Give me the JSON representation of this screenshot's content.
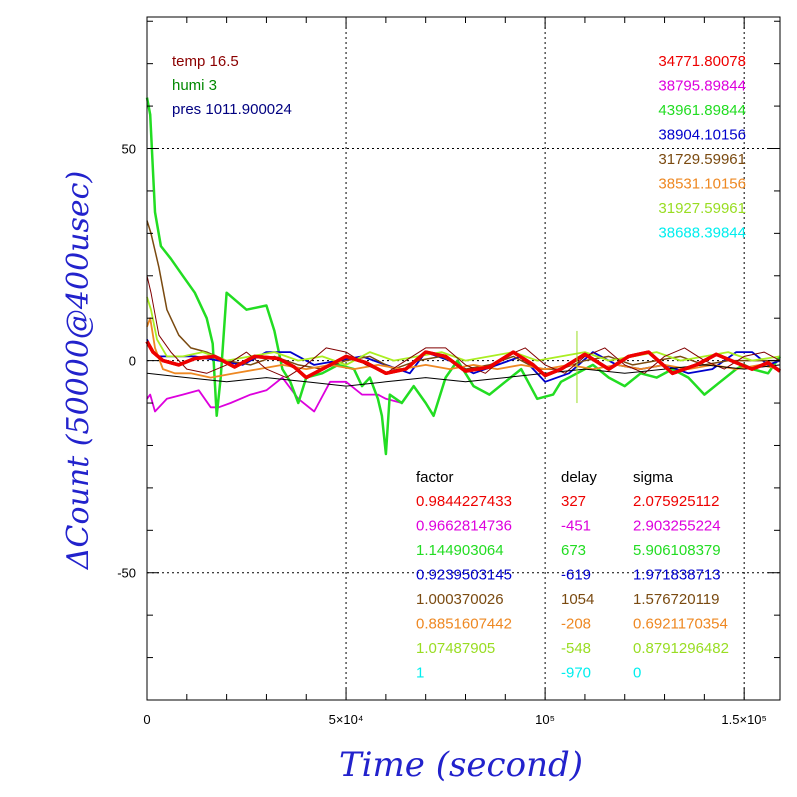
{
  "chart_data": {
    "type": "line",
    "xlabel": "Time (second)",
    "ylabel": "ΔCount (50000@400usec)",
    "xlim": [
      0,
      159000
    ],
    "ylim": [
      -80,
      81
    ],
    "x_ticks": [
      {
        "value": 0,
        "label": "0"
      },
      {
        "value": 50000,
        "label": "5×10⁴"
      },
      {
        "value": 100000,
        "label": "10⁵"
      },
      {
        "value": 150000,
        "label": "1.5×10⁵"
      }
    ],
    "y_ticks": [
      {
        "value": 50,
        "label": "50"
      },
      {
        "value": 0,
        "label": "0"
      },
      {
        "value": -50,
        "label": "-50"
      }
    ],
    "grid": true,
    "conditions": [
      {
        "text": "temp 16.5",
        "color": "#8b0000"
      },
      {
        "text": "humi 3",
        "color": "#008800"
      },
      {
        "text": "pres 1011.900024",
        "color": "#000080"
      }
    ],
    "table_headers": {
      "factor": "factor",
      "delay": "delay",
      "sigma": "sigma"
    },
    "series": [
      {
        "color": "#ee0000",
        "width": 3.5,
        "legend_value": "34771.80078",
        "factor": "0.9844227433",
        "delay": "327",
        "sigma": "2.075925112",
        "x": [
          0,
          1500,
          4000,
          8000,
          12000,
          17000,
          22000,
          27000,
          33000,
          37000,
          40000,
          45000,
          50000,
          55000,
          60000,
          65000,
          70000,
          75000,
          80000,
          86000,
          92000,
          97000,
          100000,
          104000,
          110000,
          116000,
          121000,
          126000,
          132000,
          138000,
          143000,
          148000,
          152000,
          156000,
          159000
        ],
        "y": [
          4.5,
          2,
          0,
          -1,
          0.5,
          1,
          -1.5,
          1,
          0.5,
          -1.5,
          -4,
          -1.5,
          1,
          -0.5,
          -3,
          -2,
          2,
          1,
          -2.5,
          -1.5,
          2,
          -1,
          -3.5,
          -2,
          1.5,
          -2,
          1,
          2,
          -3,
          -1,
          1.5,
          -0.5,
          -2,
          -0.5,
          -2.5
        ]
      },
      {
        "color": "#dd00dd",
        "width": 1.8,
        "legend_value": "38795.89844",
        "factor": "0.9662814736",
        "delay": "-451",
        "sigma": "2.903255224",
        "x": [
          0,
          800,
          2000,
          5000,
          9000,
          13000,
          16000,
          18000,
          21000,
          26000,
          30000,
          34000,
          38000,
          42000,
          46000,
          50000,
          54000,
          58000,
          60000,
          64000
        ],
        "y": [
          -9,
          -8,
          -12,
          -9,
          -8,
          -7,
          -11,
          -11,
          -10,
          -8,
          -7,
          -4,
          -9,
          -12,
          -5,
          -5,
          -8,
          -8,
          -9,
          -10
        ]
      },
      {
        "color": "#66ee66",
        "width": 0,
        "legend_value": "31927.59961",
        "factor": "1.07487905",
        "delay": "-548",
        "sigma": "0.8791296482",
        "x": [
          0,
          2000,
          4000,
          6000,
          9000,
          14000,
          20000,
          26000,
          32000,
          38000,
          44000,
          50000,
          56000,
          62000,
          68000,
          74000,
          80000,
          86000,
          92000,
          98000,
          104000,
          110000,
          116000,
          122000,
          128000,
          134000,
          140000,
          146000,
          152000,
          158000
        ],
        "y": [
          11,
          6,
          1,
          0,
          1,
          1,
          0,
          0,
          1,
          1,
          0,
          1,
          0,
          0,
          1,
          1,
          0,
          1,
          0,
          0,
          1,
          1,
          0,
          1,
          0,
          0,
          1,
          1,
          0,
          1
        ]
      },
      {
        "color": "#22dd22",
        "width": 2.5,
        "legend_value": "43961.89844",
        "factor": "1.144903064",
        "delay": "673",
        "sigma": "5.906108379",
        "x": [
          0,
          800,
          2000,
          3500,
          6000,
          9000,
          12000,
          15000,
          16500,
          17500,
          18500,
          20000,
          25000,
          30000,
          32000,
          34000,
          36000,
          38000,
          40000,
          44000,
          48000,
          52000,
          54000,
          56000,
          58000,
          59000,
          60000,
          61000,
          64000,
          67000,
          70000,
          72000,
          75000,
          78000,
          82000,
          86000,
          90000,
          94000,
          98000,
          102000,
          104000,
          108000,
          112000,
          116000,
          120000,
          124000,
          128000,
          132000,
          136000,
          140000,
          144000,
          148000,
          150000,
          152000,
          156000,
          159000
        ],
        "y": [
          62,
          58,
          35,
          27,
          24,
          20,
          16,
          10,
          4,
          -13,
          -4,
          16,
          12,
          13,
          7,
          -2,
          -5,
          -10,
          -4,
          -3,
          -1,
          -2,
          -6,
          -4,
          -9,
          -13,
          -22,
          -8,
          -10,
          -6,
          -10,
          -13,
          -4,
          0,
          -6,
          -8,
          -5,
          -2,
          -9,
          -8,
          -5,
          -3,
          -1,
          -4,
          -6,
          -3,
          -4,
          -2,
          -4,
          -8,
          -5,
          -2,
          -1,
          -2,
          -3,
          1
        ]
      },
      {
        "color": "#0000cc",
        "width": 1.8,
        "legend_value": "38904.10156",
        "factor": "0.9239503145",
        "delay": "-619",
        "sigma": "1.971838713",
        "x": [
          0,
          1500,
          3000,
          7000,
          12000,
          18000,
          24000,
          30000,
          36000,
          42000,
          48000,
          54000,
          60000,
          66000,
          70000,
          76000,
          82000,
          88000,
          94000,
          100000,
          106000,
          112000,
          118000,
          124000,
          130000,
          136000,
          142000,
          148000,
          152000,
          156000,
          159000
        ],
        "y": [
          5,
          2,
          1,
          1,
          1,
          0,
          -1,
          2,
          2,
          -1,
          0,
          1,
          -1,
          -3,
          2,
          0,
          -3,
          -1,
          1,
          -5,
          -3,
          2,
          -1,
          -2,
          -1,
          -3,
          -2,
          2,
          2,
          -1,
          0
        ]
      },
      {
        "color": "#7a4a10",
        "width": 1.5,
        "legend_value": "31729.59961",
        "factor": "1.000370026",
        "delay": "1054",
        "sigma": "1.576720119",
        "x": [
          0,
          1000,
          3000,
          5000,
          8000,
          11000,
          15000,
          20000,
          26000,
          32000,
          38000,
          44000,
          50000,
          56000,
          62000,
          68000,
          74000,
          80000,
          86000,
          92000,
          98000,
          104000,
          110000,
          116000,
          122000,
          128000,
          134000,
          140000,
          146000,
          152000,
          159000
        ],
        "y": [
          33,
          30,
          22,
          12,
          6,
          3,
          2,
          0,
          -1,
          1,
          -1,
          -2,
          0,
          1,
          -2,
          0,
          1,
          -2,
          -1,
          1,
          -2,
          -2,
          0,
          1,
          -1,
          0,
          1,
          -1,
          0,
          0,
          0
        ]
      },
      {
        "color": "#ee8822",
        "width": 1.8,
        "legend_value": "38531.10156",
        "factor": "0.8851607442",
        "delay": "-208",
        "sigma": "0.6921170354",
        "x": [
          0,
          800,
          2000,
          4000,
          7000,
          11000,
          16000,
          22000,
          28000,
          34000,
          40000,
          46000,
          52000,
          58000,
          64000,
          70000,
          76000,
          82000,
          88000,
          94000,
          100000,
          106000,
          112000,
          118000,
          124000,
          130000,
          136000,
          142000,
          148000,
          154000,
          159000
        ],
        "y": [
          8,
          10,
          3,
          -2,
          -3,
          -3,
          -4,
          -3,
          -2,
          -1,
          -2,
          -1,
          -2,
          -1,
          -2,
          -1,
          -2,
          -1,
          -2,
          -1,
          -2,
          -1,
          -2,
          -1,
          -2,
          -1,
          -2,
          -1,
          -2,
          -1,
          -2
        ]
      },
      {
        "color": "#aaee22",
        "width": 1.8,
        "legend_value": "",
        "factor": "",
        "delay": "",
        "sigma": "",
        "x": [
          0,
          1000,
          2500,
          5000,
          9000,
          14000,
          20000,
          26000,
          32000,
          38000,
          44000,
          50000,
          56000,
          62000,
          68000,
          74000,
          80000,
          86000,
          92000,
          98000,
          104000,
          110000,
          116000,
          122000,
          128000,
          134000,
          140000,
          146000,
          152000,
          159000
        ],
        "y": [
          15,
          12,
          5,
          1,
          1,
          2,
          0,
          1,
          2,
          0,
          1,
          -1,
          2,
          0,
          1,
          2,
          0,
          1,
          2,
          0,
          1,
          2,
          0,
          1,
          2,
          0,
          1,
          2,
          0,
          1
        ]
      },
      {
        "color": "#800000",
        "width": 1,
        "legend_value": "",
        "factor": "",
        "delay": "",
        "sigma": "",
        "x": [
          0,
          1000,
          3000,
          6000,
          10000,
          15000,
          20000,
          25000,
          30000,
          35000,
          40000,
          45000,
          50000,
          55000,
          60000,
          65000,
          70000,
          75000,
          80000,
          85000,
          90000,
          95000,
          100000,
          105000,
          110000,
          115000,
          120000,
          125000,
          130000,
          135000,
          140000,
          145000,
          150000,
          155000,
          159000
        ],
        "y": [
          20,
          16,
          6,
          2,
          -2,
          -3,
          -1,
          2,
          -2,
          -4,
          -1,
          3,
          2,
          -1,
          -3,
          0,
          3,
          3,
          -1,
          -3,
          1,
          3,
          -1,
          -3,
          1,
          3,
          -1,
          -3,
          1,
          3,
          0,
          -2,
          1,
          2,
          0
        ]
      },
      {
        "color": "#000000",
        "width": 1,
        "legend_value": "",
        "factor": "",
        "delay": "",
        "sigma": "",
        "x": [
          0,
          10000,
          20000,
          30000,
          40000,
          50000,
          60000,
          70000,
          80000,
          90000,
          100000,
          110000,
          120000,
          130000,
          140000,
          150000,
          159000
        ],
        "y": [
          -3,
          -4,
          -5,
          -4,
          -5,
          -6,
          -5,
          -4,
          -5,
          -4,
          -3,
          -2,
          -3,
          -2,
          -1,
          -2,
          -1
        ]
      },
      {
        "color": "#00eeee",
        "width": 0,
        "legend_value": "38688.39844",
        "factor": "1",
        "delay": "-970",
        "sigma": "0",
        "x": [
          0,
          159000
        ],
        "y": [
          0,
          0
        ]
      }
    ],
    "legend_values_order": [
      {
        "value": "34771.80078",
        "color": "#ee0000"
      },
      {
        "value": "38795.89844",
        "color": "#dd00dd"
      },
      {
        "value": "43961.89844",
        "color": "#22dd22"
      },
      {
        "value": "38904.10156",
        "color": "#0000cc"
      },
      {
        "value": "31729.59961",
        "color": "#7a4a10"
      },
      {
        "value": "38531.10156",
        "color": "#ee8822"
      },
      {
        "value": "31927.59961",
        "color": "#99dd22"
      },
      {
        "value": "38688.39844",
        "color": "#00eeee"
      }
    ],
    "table_rows": [
      {
        "factor": "0.9844227433",
        "delay": "327",
        "sigma": "2.075925112",
        "color": "#ee0000"
      },
      {
        "factor": "0.9662814736",
        "delay": "-451",
        "sigma": "2.903255224",
        "color": "#dd00dd"
      },
      {
        "factor": "1.144903064",
        "delay": "673",
        "sigma": "5.906108379",
        "color": "#22dd22"
      },
      {
        "factor": "0.9239503145",
        "delay": "-619",
        "sigma": "1.971838713",
        "color": "#0000cc"
      },
      {
        "factor": "1.000370026",
        "delay": "1054",
        "sigma": "1.576720119",
        "color": "#7a4a10"
      },
      {
        "factor": "0.8851607442",
        "delay": "-208",
        "sigma": "0.6921170354",
        "color": "#ee8822"
      },
      {
        "factor": "1.07487905",
        "delay": "-548",
        "sigma": "0.8791296482",
        "color": "#99dd22"
      },
      {
        "factor": "1",
        "delay": "-970",
        "sigma": "0",
        "color": "#00eeee"
      }
    ]
  }
}
